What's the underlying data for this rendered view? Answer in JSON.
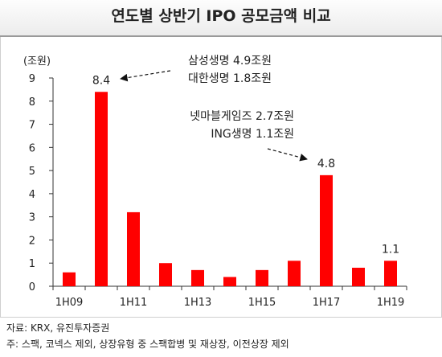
{
  "page": {
    "title": "연도별 상반기 IPO 공모금액 비교",
    "source": "자료: KRX, 유진투자증권",
    "note": "주: 스팩, 코넥스 제외, 상장유형 중 스팩합병 및 재상장, 이전상장 제외"
  },
  "chart_data": {
    "type": "bar",
    "title": "연도별 상반기 IPO 공모금액 비교",
    "unit_label": "(조원)",
    "categories": [
      "1H09",
      "1H10",
      "1H11",
      "1H12",
      "1H13",
      "1H14",
      "1H15",
      "1H16",
      "1H17",
      "1H18",
      "1H19"
    ],
    "tick_labels_x": [
      "1H09",
      "1H11",
      "1H13",
      "1H15",
      "1H17",
      "1H19"
    ],
    "values": [
      0.6,
      8.4,
      3.2,
      1.0,
      0.7,
      0.4,
      0.7,
      1.1,
      4.8,
      0.8,
      1.1
    ],
    "ylim": [
      0,
      9
    ],
    "yticks": [
      0,
      1,
      2,
      3,
      4,
      5,
      6,
      7,
      8,
      9
    ],
    "bar_color": "#ff0000",
    "grid": false,
    "data_labels": [
      {
        "category": "1H10",
        "text": "8.4"
      },
      {
        "category": "1H17",
        "text": "4.8"
      },
      {
        "category": "1H19",
        "text": "1.1"
      }
    ],
    "annotations": [
      {
        "category": "1H10",
        "lines": [
          "삼성생명 4.9조원",
          "대한생명 1.8조원"
        ]
      },
      {
        "category": "1H17",
        "lines": [
          "넷마블게임즈 2.7조원",
          "ING생명 1.1조원"
        ]
      }
    ]
  }
}
